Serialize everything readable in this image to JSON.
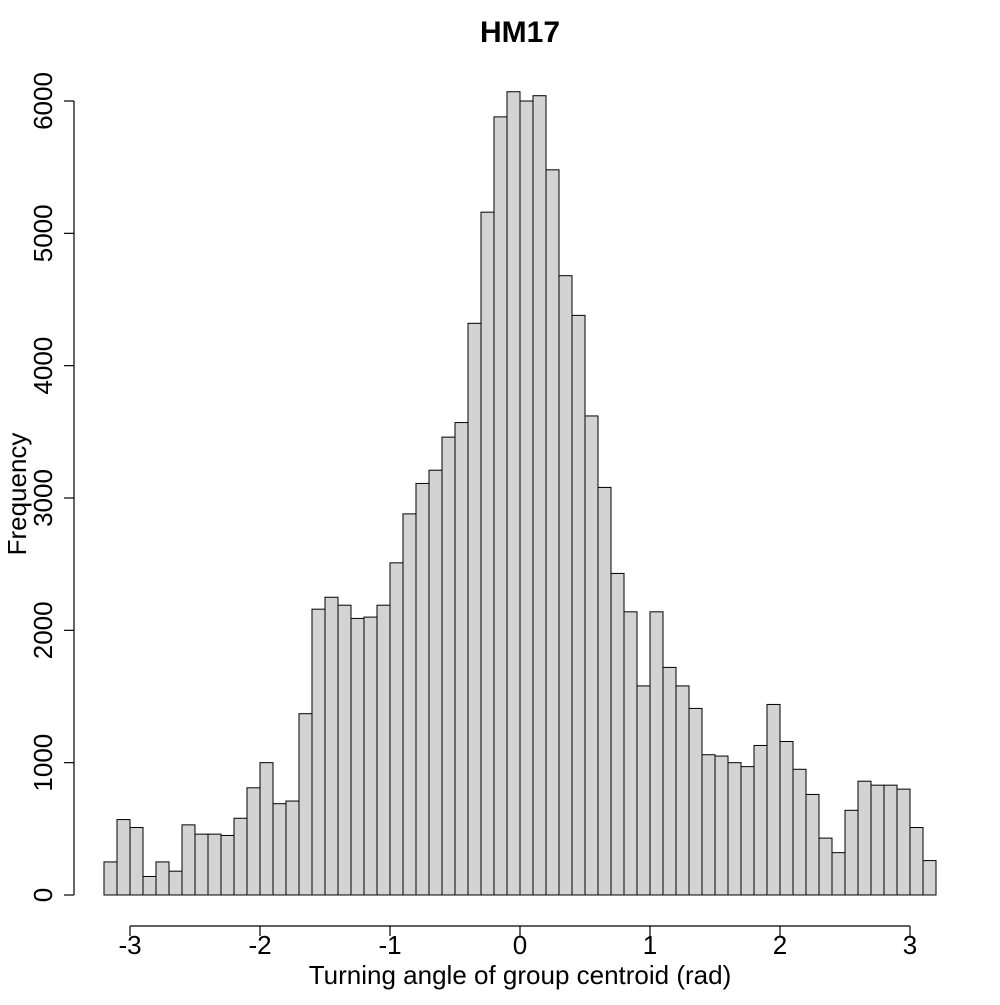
{
  "chart_data": {
    "type": "bar",
    "title": "HM17",
    "xlabel": "Turning angle of group centroid (rad)",
    "ylabel": "Frequency",
    "xlim": [
      -3.2,
      3.2
    ],
    "ylim": [
      0,
      6000
    ],
    "x_ticks": [
      -3,
      -2,
      -1,
      0,
      1,
      2,
      3
    ],
    "y_ticks": [
      0,
      1000,
      2000,
      3000,
      4000,
      5000,
      6000
    ],
    "bin_width": 0.1,
    "bin_start": -3.2,
    "values": [
      250,
      570,
      510,
      140,
      250,
      180,
      530,
      460,
      460,
      450,
      580,
      810,
      1000,
      690,
      710,
      1370,
      2160,
      2250,
      2190,
      2090,
      2100,
      2190,
      2510,
      2880,
      3110,
      3210,
      3460,
      3570,
      4320,
      5160,
      5880,
      6070,
      6000,
      6040,
      5480,
      4680,
      4380,
      3620,
      3080,
      2430,
      2140,
      1580,
      2140,
      1720,
      1580,
      1410,
      1060,
      1050,
      1000,
      970,
      1130,
      1440,
      1160,
      950,
      760,
      430,
      320,
      640,
      860,
      830,
      830,
      800,
      510,
      260
    ],
    "grid": false
  }
}
